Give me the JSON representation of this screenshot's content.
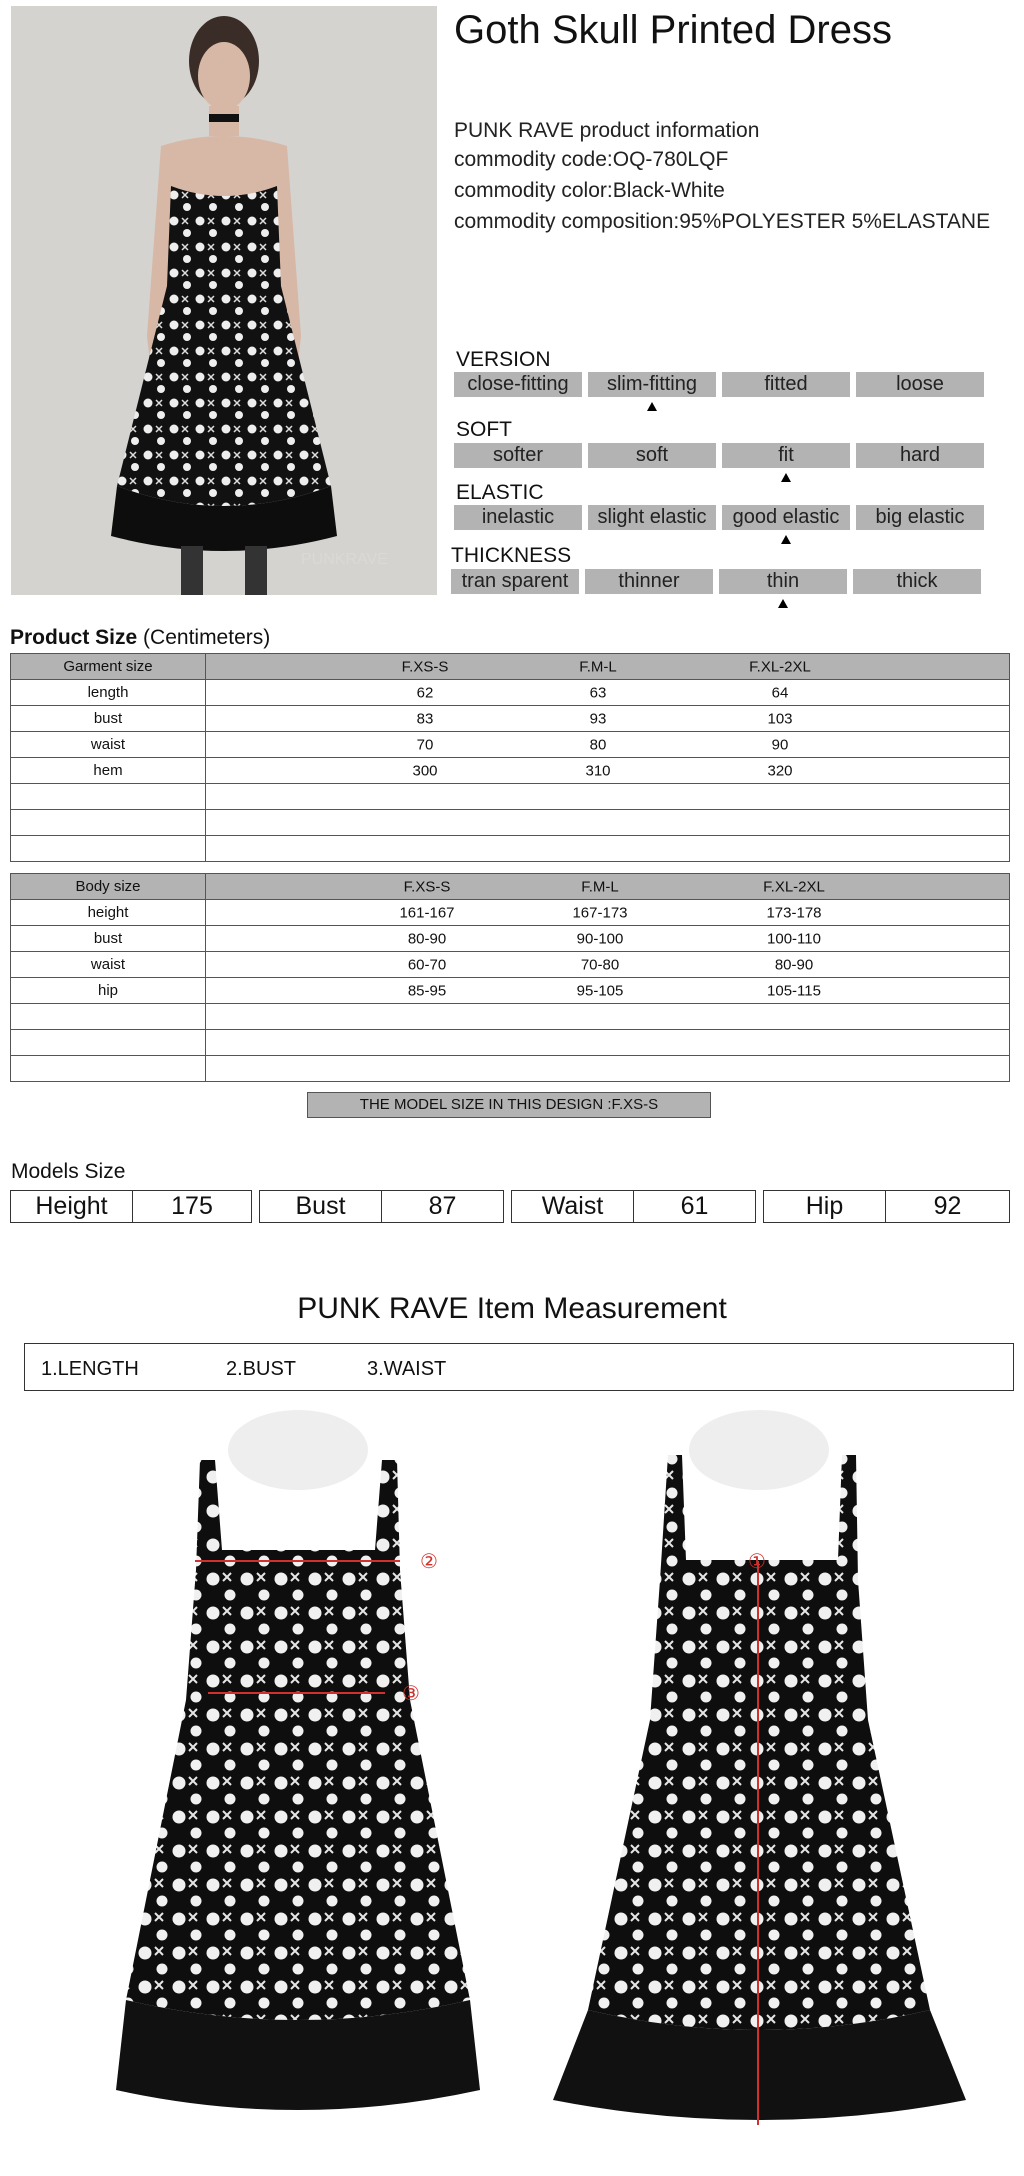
{
  "product": {
    "title": "Goth Skull Printed Dress",
    "brand_info": "PUNK RAVE product information",
    "code_label": "commodity code:",
    "code": "OQ-780LQF",
    "color_label": "commodity color:",
    "color": "Black-White",
    "composition_label": "commodity composition:",
    "composition": "95%POLYESTER 5%ELASTANE",
    "photo_watermark": "PUNKRAVE"
  },
  "ratings": [
    {
      "label": "VERSION",
      "options": [
        "close-fitting",
        "slim-fitting",
        "fitted",
        "loose"
      ],
      "selected": 1
    },
    {
      "label": "SOFT",
      "options": [
        "softer",
        "soft",
        "fit",
        "hard"
      ],
      "selected": 2
    },
    {
      "label": "ELASTIC",
      "options": [
        "inelastic",
        "slight elastic",
        "good elastic",
        "big elastic"
      ],
      "selected": 2
    },
    {
      "label": "THICKNESS",
      "options": [
        "tran sparent",
        "thinner",
        "thin",
        "thick"
      ],
      "selected": 2
    }
  ],
  "product_size": {
    "title": "Product Size",
    "unit": "(Centimeters)",
    "garment": {
      "header": [
        "Garment size",
        "F.XS-S",
        "F.M-L",
        "F.XL-2XL"
      ],
      "rows": [
        [
          "length",
          "62",
          "63",
          "64"
        ],
        [
          "bust",
          "83",
          "93",
          "103"
        ],
        [
          "waist",
          "70",
          "80",
          "90"
        ],
        [
          "hem",
          "300",
          "310",
          "320"
        ]
      ]
    },
    "body": {
      "header": [
        "Body size",
        "F.XS-S",
        "F.M-L",
        "F.XL-2XL"
      ],
      "rows": [
        [
          "height",
          "161-167",
          "167-173",
          "173-178"
        ],
        [
          "bust",
          "80-90",
          "90-100",
          "100-110"
        ],
        [
          "waist",
          "60-70",
          "70-80",
          "80-90"
        ],
        [
          "hip",
          "85-95",
          "95-105",
          "105-115"
        ]
      ]
    },
    "model_note": "THE MODEL SIZE IN THIS DESIGN :F.XS-S"
  },
  "models_size": {
    "title": "Models Size",
    "items": [
      {
        "label": "Height",
        "value": "175"
      },
      {
        "label": "Bust",
        "value": "87"
      },
      {
        "label": "Waist",
        "value": "61"
      },
      {
        "label": "Hip",
        "value": "92"
      }
    ]
  },
  "measurement": {
    "title": "PUNK RAVE Item  Measurement",
    "items": [
      "1.LENGTH",
      "2.BUST",
      "3.WAIST"
    ],
    "markers": [
      "①",
      "②",
      "③"
    ],
    "marker_color": "#d0312d"
  }
}
